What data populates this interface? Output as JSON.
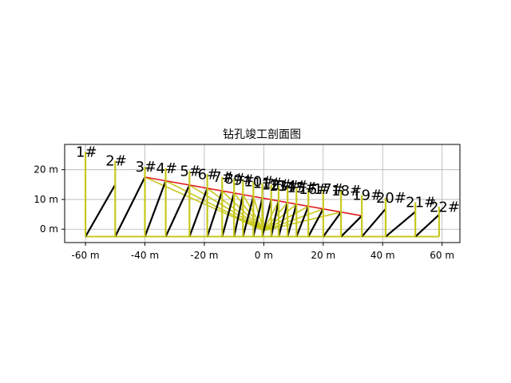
{
  "chart_data": {
    "type": "line",
    "title": "钻孔竣工剖面图",
    "xlabel": "",
    "ylabel": "",
    "xlim": [
      -67,
      66
    ],
    "ylim": [
      -4.5,
      28.5
    ],
    "grid": true,
    "x_ticks": [
      {
        "value": -60,
        "label": "-60 m"
      },
      {
        "value": -40,
        "label": "-40 m"
      },
      {
        "value": -20,
        "label": "-20 m"
      },
      {
        "value": 0,
        "label": "0 m"
      },
      {
        "value": 20,
        "label": "20 m"
      },
      {
        "value": 40,
        "label": "40 m"
      },
      {
        "value": 60,
        "label": "60 m"
      }
    ],
    "y_ticks": [
      {
        "value": 0,
        "label": "0 m"
      },
      {
        "value": 10,
        "label": "10 m"
      },
      {
        "value": 20,
        "label": "20 m"
      }
    ],
    "base_y": -2.5,
    "fan_origin": [
      0,
      -0.5
    ],
    "top_line": [
      [
        -40,
        17.5
      ],
      [
        33,
        4.5
      ]
    ],
    "holes": [
      {
        "label": "1#",
        "x": -60,
        "top": 26
      },
      {
        "label": "2#",
        "x": -50,
        "top": 23
      },
      {
        "label": "3#",
        "x": -40,
        "top": 21
      },
      {
        "label": "4#",
        "x": -33,
        "top": 20.5
      },
      {
        "label": "5#",
        "x": -25,
        "top": 19.5
      },
      {
        "label": "6#",
        "x": -19,
        "top": 18.5
      },
      {
        "label": "7#",
        "x": -14,
        "top": 17.5
      },
      {
        "label": "8#",
        "x": -10,
        "top": 17
      },
      {
        "label": "9#",
        "x": -7,
        "top": 16.5
      },
      {
        "label": "10#",
        "x": -3.5,
        "top": 16
      },
      {
        "label": "11#",
        "x": -0.5,
        "top": 15.5
      },
      {
        "label": "12#",
        "x": 2.5,
        "top": 15
      },
      {
        "label": "13#",
        "x": 5,
        "top": 14.5
      },
      {
        "label": "14#",
        "x": 8,
        "top": 14.5
      },
      {
        "label": "15#",
        "x": 11,
        "top": 14
      },
      {
        "label": "16#",
        "x": 15,
        "top": 13.5
      },
      {
        "label": "17#",
        "x": 20,
        "top": 13.5
      },
      {
        "label": "18#",
        "x": 26,
        "top": 13
      },
      {
        "label": "19#",
        "x": 33,
        "top": 11.5
      },
      {
        "label": "20#",
        "x": 41,
        "top": 10.5
      },
      {
        "label": "21#",
        "x": 51,
        "top": 9
      },
      {
        "label": "22#",
        "x": 59,
        "top": 7.5
      }
    ]
  }
}
